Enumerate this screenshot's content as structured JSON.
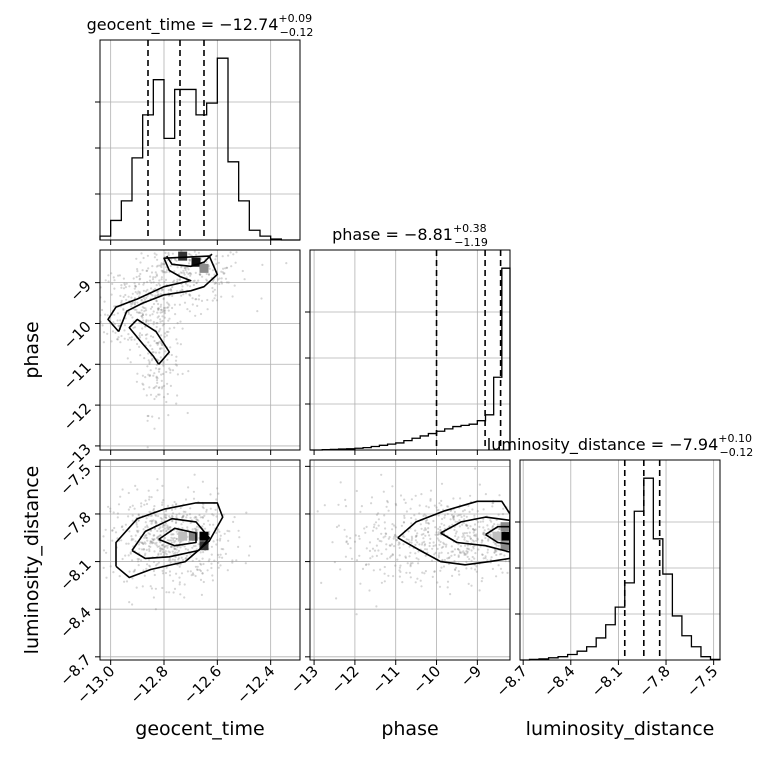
{
  "chart_data": {
    "type": "corner",
    "parameters": [
      "geocent_time",
      "phase",
      "luminosity_distance"
    ],
    "titles": [
      {
        "param": "geocent_time",
        "lead": "geocent_time = −12.74",
        "upper": "+0.09",
        "lower": "−0.12"
      },
      {
        "param": "phase",
        "lead": "phase = −8.81",
        "upper": "+0.38",
        "lower": "−1.19"
      },
      {
        "param": "luminosity_distance",
        "lead": "luminosity_distance = −7.94",
        "upper": "+0.10",
        "lower": "−0.12"
      }
    ],
    "axis_labels": {
      "x": [
        "geocent_time",
        "phase",
        "luminosity_distance"
      ],
      "y": [
        "phase",
        "luminosity_distance"
      ]
    },
    "ranges": {
      "geocent_time": [
        -13.04,
        -12.29
      ],
      "phase": [
        -13.1,
        -8.2
      ],
      "luminosity_distance": [
        -8.72,
        -7.46
      ]
    },
    "ticks": {
      "geocent_time": {
        "values": [
          -13.0,
          -12.8,
          -12.6,
          -12.4
        ],
        "labels": [
          "−13.0",
          "−12.8",
          "−12.6",
          "−12.4"
        ]
      },
      "phase": {
        "values": [
          -13,
          -12,
          -11,
          -10,
          -9
        ],
        "labels": [
          "−13",
          "−12",
          "−11",
          "−10",
          "−9"
        ]
      },
      "luminosity_distance": {
        "values": [
          -8.7,
          -8.4,
          -8.1,
          -7.8,
          -7.5
        ],
        "labels": [
          "−8.7",
          "−8.4",
          "−8.1",
          "−7.8",
          "−7.5"
        ]
      }
    },
    "quantiles": {
      "geocent_time": [
        -12.86,
        -12.74,
        -12.65
      ],
      "phase": [
        -10.0,
        -8.81,
        -8.43
      ],
      "luminosity_distance": [
        -8.06,
        -7.94,
        -7.84
      ]
    },
    "histograms": {
      "geocent_time": {
        "edges": [
          -13.04,
          -13.0,
          -12.96,
          -12.92,
          -12.88,
          -12.84,
          -12.8,
          -12.76,
          -12.72,
          -12.68,
          -12.64,
          -12.6,
          -12.56,
          -12.52,
          -12.48,
          -12.44,
          -12.4,
          -12.36,
          -12.32,
          -12.29
        ],
        "counts": [
          2,
          10,
          20,
          42,
          64,
          82,
          52,
          77,
          77,
          64,
          70,
          93,
          40,
          20,
          5,
          2,
          0.5,
          0,
          0
        ]
      },
      "phase": {
        "edges": [
          -13.1,
          -12.8,
          -12.6,
          -12.4,
          -12.2,
          -12.0,
          -11.8,
          -11.6,
          -11.4,
          -11.2,
          -11.0,
          -10.8,
          -10.6,
          -10.4,
          -10.2,
          -10.0,
          -9.8,
          -9.6,
          -9.4,
          -9.2,
          -9.0,
          -8.8,
          -8.6,
          -8.4,
          -8.2
        ],
        "counts": [
          0,
          0.3,
          0.5,
          0.8,
          1,
          1.5,
          2,
          3,
          4,
          5,
          6,
          8,
          10,
          12,
          14,
          16,
          18,
          20,
          21,
          22,
          25,
          30,
          62,
          155
        ]
      },
      "luminosity_distance": {
        "edges": [
          -8.72,
          -8.66,
          -8.6,
          -8.54,
          -8.48,
          -8.42,
          -8.36,
          -8.3,
          -8.24,
          -8.18,
          -8.12,
          -8.06,
          -8.0,
          -7.94,
          -7.88,
          -7.82,
          -7.76,
          -7.7,
          -7.64,
          -7.58,
          -7.52,
          -7.46
        ],
        "counts": [
          0,
          0.5,
          1,
          2,
          3,
          5,
          8,
          12,
          20,
          32,
          48,
          70,
          135,
          165,
          110,
          78,
          40,
          22,
          12,
          3,
          0.5
        ]
      }
    },
    "pairs": [
      {
        "x": "geocent_time",
        "y": "phase",
        "blobs": [
          {
            "center": [
              -12.9,
              -9.9
            ],
            "spread": [
              0.08,
              0.4
            ],
            "n": 160
          },
          {
            "center": [
              -12.82,
              -11.0
            ],
            "spread": [
              0.04,
              0.6
            ],
            "n": 130
          },
          {
            "center": [
              -12.72,
              -8.8
            ],
            "spread": [
              0.12,
              0.35
            ],
            "n": 260
          },
          {
            "center": [
              -12.85,
              -9.4
            ],
            "spread": [
              0.1,
              0.4
            ],
            "n": 130
          }
        ],
        "contours": [
          [
            [
              -12.97,
              -10.2
            ],
            [
              -12.94,
              -9.7
            ],
            [
              -12.88,
              -9.5
            ],
            [
              -12.8,
              -9.3
            ],
            [
              -12.7,
              -9.2
            ],
            [
              -12.65,
              -9.1
            ],
            [
              -12.6,
              -8.8
            ],
            [
              -12.63,
              -8.35
            ],
            [
              -12.8,
              -8.4
            ],
            [
              -12.78,
              -8.7
            ],
            [
              -12.74,
              -8.85
            ],
            [
              -12.7,
              -8.95
            ],
            [
              -12.8,
              -9.1
            ],
            [
              -12.9,
              -9.4
            ],
            [
              -12.98,
              -9.6
            ],
            [
              -13.01,
              -9.9
            ],
            [
              -12.97,
              -10.2
            ]
          ],
          [
            [
              -12.82,
              -11.0
            ],
            [
              -12.78,
              -10.7
            ],
            [
              -12.83,
              -10.2
            ],
            [
              -12.9,
              -9.9
            ],
            [
              -12.93,
              -10.1
            ],
            [
              -12.88,
              -10.5
            ],
            [
              -12.84,
              -10.8
            ],
            [
              -12.82,
              -11.0
            ]
          ],
          [
            [
              -12.79,
              -8.35
            ],
            [
              -12.77,
              -8.55
            ],
            [
              -12.7,
              -8.6
            ],
            [
              -12.65,
              -8.5
            ],
            [
              -12.62,
              -8.3
            ]
          ]
        ],
        "hot_cells": [
          {
            "x": -12.68,
            "y": -8.5,
            "shade": 0.05
          },
          {
            "x": -12.73,
            "y": -8.35,
            "shade": 0.2
          },
          {
            "x": -12.65,
            "y": -8.65,
            "shade": 0.55
          }
        ]
      },
      {
        "x": "geocent_time",
        "y": "luminosity_distance",
        "blobs": [
          {
            "center": [
              -12.78,
              -7.96
            ],
            "spread": [
              0.11,
              0.14
            ],
            "n": 620
          }
        ],
        "contours": [
          [
            [
              -12.98,
              -8.13
            ],
            [
              -12.98,
              -7.98
            ],
            [
              -12.9,
              -7.83
            ],
            [
              -12.8,
              -7.77
            ],
            [
              -12.68,
              -7.73
            ],
            [
              -12.6,
              -7.73
            ],
            [
              -12.58,
              -7.82
            ],
            [
              -12.63,
              -7.97
            ],
            [
              -12.72,
              -8.1
            ],
            [
              -12.85,
              -8.15
            ],
            [
              -12.93,
              -8.2
            ],
            [
              -12.98,
              -8.13
            ]
          ],
          [
            [
              -12.92,
              -8.03
            ],
            [
              -12.87,
              -7.91
            ],
            [
              -12.77,
              -7.83
            ],
            [
              -12.68,
              -7.85
            ],
            [
              -12.63,
              -7.95
            ],
            [
              -12.67,
              -8.03
            ],
            [
              -12.78,
              -8.07
            ],
            [
              -12.87,
              -8.08
            ],
            [
              -12.92,
              -8.03
            ]
          ],
          [
            [
              -12.82,
              -7.96
            ],
            [
              -12.76,
              -7.89
            ],
            [
              -12.68,
              -7.92
            ],
            [
              -12.68,
              -7.98
            ],
            [
              -12.76,
              -8.0
            ],
            [
              -12.82,
              -7.96
            ]
          ]
        ],
        "hot_cells": [
          {
            "x": -12.65,
            "y": -7.94,
            "shade": 0.0
          },
          {
            "x": -12.65,
            "y": -8.0,
            "shade": 0.2
          },
          {
            "x": -12.69,
            "y": -7.94,
            "shade": 0.5
          },
          {
            "x": -12.73,
            "y": -7.94,
            "shade": 0.75
          }
        ]
      },
      {
        "x": "phase",
        "y": "luminosity_distance",
        "blobs": [
          {
            "center": [
              -9.3,
              -7.95
            ],
            "spread": [
              1.2,
              0.13
            ],
            "n": 560
          },
          {
            "center": [
              -10.8,
              -7.95
            ],
            "spread": [
              1.1,
              0.16
            ],
            "n": 160
          }
        ],
        "contours": [
          [
            [
              -10.95,
              -7.95
            ],
            [
              -10.5,
              -7.85
            ],
            [
              -9.8,
              -7.78
            ],
            [
              -9.0,
              -7.72
            ],
            [
              -8.4,
              -7.72
            ],
            [
              -8.2,
              -7.8
            ],
            [
              -8.2,
              -8.08
            ],
            [
              -8.7,
              -8.1
            ],
            [
              -9.3,
              -8.12
            ],
            [
              -9.9,
              -8.1
            ],
            [
              -10.4,
              -8.03
            ],
            [
              -10.95,
              -7.95
            ]
          ],
          [
            [
              -9.9,
              -7.92
            ],
            [
              -9.4,
              -7.85
            ],
            [
              -8.8,
              -7.82
            ],
            [
              -8.2,
              -7.84
            ],
            [
              -8.2,
              -8.04
            ],
            [
              -8.8,
              -8.0
            ],
            [
              -9.5,
              -7.98
            ],
            [
              -9.9,
              -7.92
            ]
          ],
          [
            [
              -8.8,
              -7.93
            ],
            [
              -8.5,
              -7.88
            ],
            [
              -8.2,
              -7.88
            ],
            [
              -8.2,
              -7.99
            ],
            [
              -8.5,
              -7.98
            ],
            [
              -8.8,
              -7.93
            ]
          ]
        ],
        "hot_cells": [
          {
            "x": -8.32,
            "y": -7.94,
            "shade": 0.0
          },
          {
            "x": -8.32,
            "y": -7.88,
            "shade": 0.55
          },
          {
            "x": -8.32,
            "y": -8.0,
            "shade": 0.55
          },
          {
            "x": -8.52,
            "y": -7.94,
            "shade": 0.75
          }
        ]
      }
    ],
    "grid": true,
    "contour_color": "#000000",
    "scatter_color": "#888888",
    "line_color": "#000000"
  }
}
